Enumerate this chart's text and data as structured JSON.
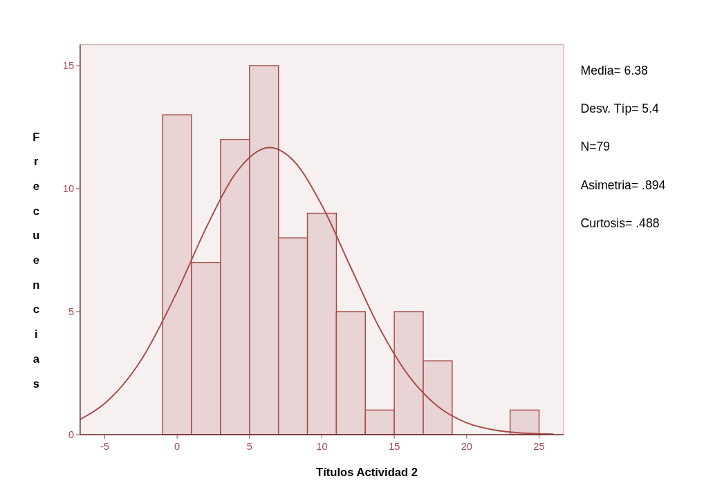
{
  "chart_data": {
    "type": "histogram",
    "xlabel": "Títulos Actividad 2",
    "ylabel": "Frecuencias",
    "bins": [
      -1,
      1,
      3,
      5,
      7,
      9,
      11,
      13,
      15,
      17,
      19,
      21,
      23,
      25
    ],
    "series": [
      {
        "color": "#e8d4d4",
        "values": [
          13,
          7,
          12,
          15,
          8,
          9,
          5,
          1,
          5,
          3,
          0,
          0,
          1
        ]
      },
      {
        "type": "line",
        "color": "#a84a4a",
        "x": [
          -6.7,
          -5,
          -2.5,
          0,
          2,
          4,
          6.38,
          8,
          10,
          12,
          14,
          16,
          18,
          20,
          22,
          24,
          26
        ],
        "values": [
          0.62,
          1.27,
          3.02,
          5.81,
          8.4,
          10.59,
          11.67,
          11.16,
          9.32,
          6.79,
          4.31,
          2.39,
          1.15,
          0.48,
          0.18,
          0.06,
          0.02
        ]
      }
    ],
    "xlim": [
      -6.7,
      26.7
    ],
    "ylim": [
      0,
      15.85
    ],
    "xticks": [
      -5,
      0,
      5,
      10,
      15,
      20,
      25
    ],
    "yticks": [
      0,
      5,
      10,
      15
    ],
    "grid": false,
    "annotations": [
      "Media= 6.38",
      "Desv. Típ= 5.4",
      "N=79",
      "Asimetria= .894",
      "Curtosis= .488"
    ]
  }
}
